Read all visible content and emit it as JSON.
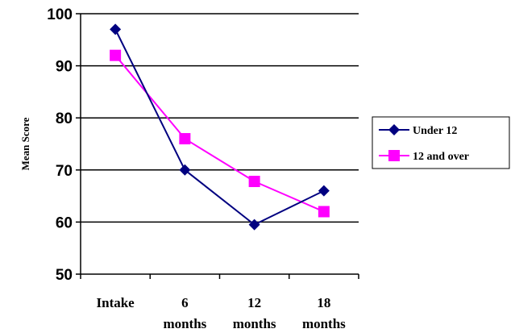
{
  "chart_data": {
    "type": "line",
    "title": "",
    "xlabel": "",
    "ylabel": "Mean Score",
    "categories": [
      [
        "Intake"
      ],
      [
        "6",
        "months"
      ],
      [
        "12",
        "months"
      ],
      [
        "18",
        "months"
      ]
    ],
    "ylim": [
      50,
      100
    ],
    "yticks": [
      "50",
      "60",
      "70",
      "80",
      "90",
      "100"
    ],
    "grid": "horizontal",
    "legend_position": "right",
    "series": [
      {
        "name": "Under 12",
        "values": [
          97,
          70,
          59.5,
          66
        ],
        "color": "#000080",
        "marker": "diamond"
      },
      {
        "name": "12 and over",
        "values": [
          92,
          76,
          67.8,
          62
        ],
        "color": "#FF00FF",
        "marker": "square"
      }
    ]
  }
}
